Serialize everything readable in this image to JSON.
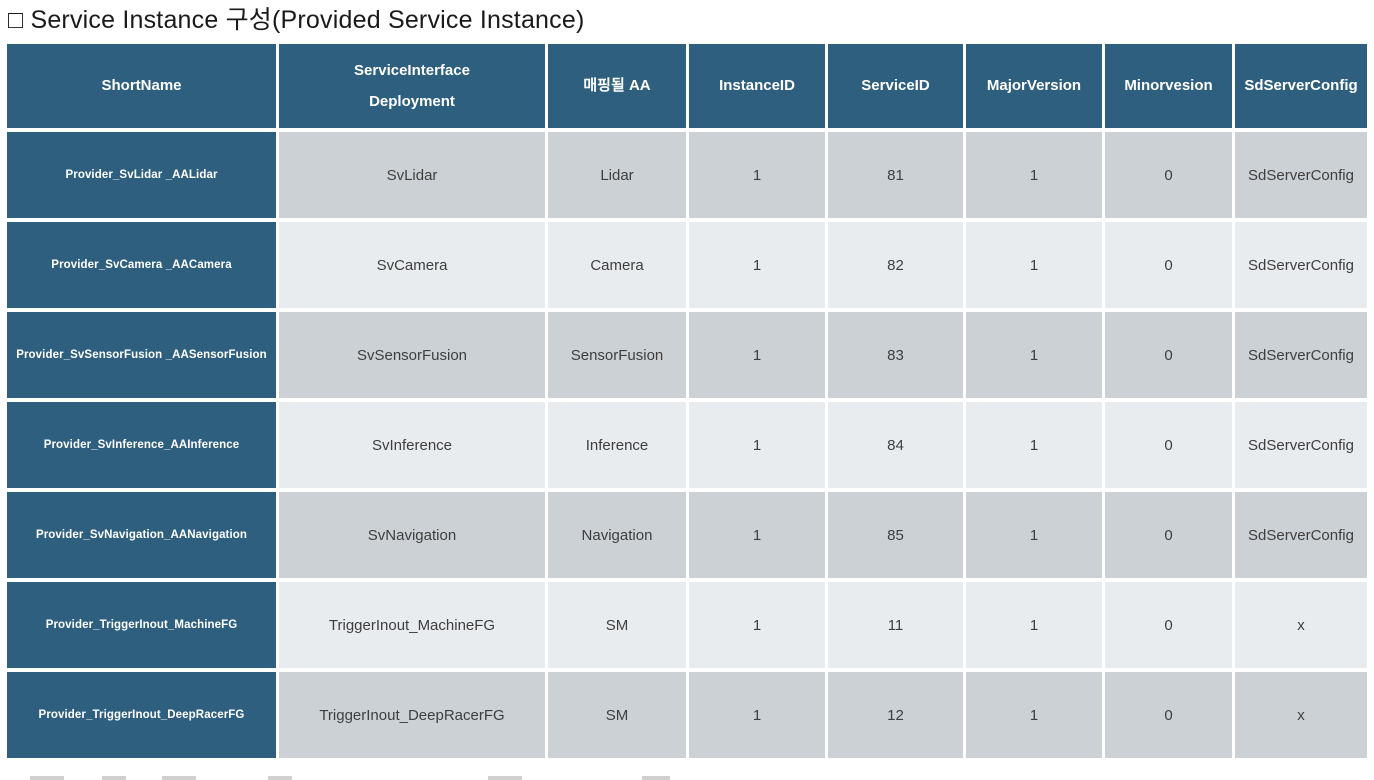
{
  "page": {
    "title": "□ Service Instance 구성(Provided Service Instance)"
  },
  "colors": {
    "header_bg": "#2E5F7E",
    "row_dark_bg": "#CCD1D5",
    "row_light_bg": "#E9ECEF",
    "border": "#FFFFFF",
    "header_text": "#FFFFFF",
    "body_text": "#3E3E3E",
    "title_text": "#1A1A1A"
  },
  "table": {
    "columns": [
      {
        "key": "short_name",
        "label": "ShortName"
      },
      {
        "key": "deployment",
        "label": "ServiceInterface\nDeployment"
      },
      {
        "key": "aa",
        "label": "매핑될 AA"
      },
      {
        "key": "instance_id",
        "label": "InstanceID"
      },
      {
        "key": "service_id",
        "label": "ServiceID"
      },
      {
        "key": "major_version",
        "label": "MajorVersion"
      },
      {
        "key": "minor_version",
        "label": "Minorvesion"
      },
      {
        "key": "sd_server_config",
        "label": "SdServerConfig"
      }
    ],
    "rows": [
      {
        "short_name": "Provider_SvLidar _AALidar",
        "deployment": "SvLidar",
        "aa": "Lidar",
        "instance_id": "1",
        "service_id": "81",
        "major_version": "1",
        "minor_version": "0",
        "sd_server_config": "SdServerConfig"
      },
      {
        "short_name": "Provider_SvCamera _AACamera",
        "deployment": "SvCamera",
        "aa": "Camera",
        "instance_id": "1",
        "service_id": "82",
        "major_version": "1",
        "minor_version": "0",
        "sd_server_config": "SdServerConfig"
      },
      {
        "short_name": "Provider_SvSensorFusion _AASensorFusion",
        "deployment": "SvSensorFusion",
        "aa": "SensorFusion",
        "instance_id": "1",
        "service_id": "83",
        "major_version": "1",
        "minor_version": "0",
        "sd_server_config": "SdServerConfig"
      },
      {
        "short_name": "Provider_SvInference_AAInference",
        "deployment": "SvInference",
        "aa": "Inference",
        "instance_id": "1",
        "service_id": "84",
        "major_version": "1",
        "minor_version": "0",
        "sd_server_config": "SdServerConfig"
      },
      {
        "short_name": "Provider_SvNavigation_AANavigation",
        "deployment": "SvNavigation",
        "aa": "Navigation",
        "instance_id": "1",
        "service_id": "85",
        "major_version": "1",
        "minor_version": "0",
        "sd_server_config": "SdServerConfig"
      },
      {
        "short_name": "Provider_TriggerInout_MachineFG",
        "deployment": "TriggerInout_MachineFG",
        "aa": "SM",
        "instance_id": "1",
        "service_id": "11",
        "major_version": "1",
        "minor_version": "0",
        "sd_server_config": "x"
      },
      {
        "short_name": "Provider_TriggerInout_DeepRacerFG",
        "deployment": "TriggerInout_DeepRacerFG",
        "aa": "SM",
        "instance_id": "1",
        "service_id": "12",
        "major_version": "1",
        "minor_version": "0",
        "sd_server_config": "x"
      }
    ]
  }
}
